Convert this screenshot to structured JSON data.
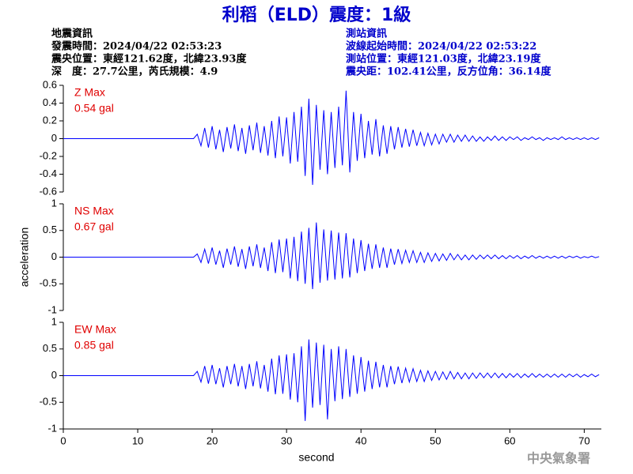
{
  "header": {
    "title": "利稻（ELD）震度：1級",
    "left": [
      "地震資訊",
      "發震時間：2024/04/22 02:53:23",
      "震央位置：東經121.62度，北緯23.93度",
      "深　度：27.7公里，芮氏規模：4.9"
    ],
    "right": [
      "測站資訊",
      "波線起始時間：2024/04/22 02:53:22",
      "測站位置：東經121.03度，北緯23.19度",
      "震央距：102.41公里，反方位角：36.14度"
    ],
    "watermark": "中央氣象署"
  },
  "chart_data": [
    {
      "type": "line",
      "color": "#0000ff",
      "annotations": [
        "Z Max",
        "0.54 gal"
      ],
      "xlim": [
        0,
        72.3
      ],
      "ylim": [
        -0.6,
        0.6
      ],
      "yticks": [
        0.6,
        0.4,
        0.2,
        0,
        -0.2,
        -0.4,
        -0.6
      ],
      "x": [
        0,
        17.5,
        18,
        18.5,
        19,
        19.5,
        20,
        20.5,
        21,
        21.5,
        22,
        22.5,
        23,
        23.5,
        24,
        24.5,
        25,
        25.5,
        26,
        26.5,
        27,
        27.5,
        28,
        28.5,
        29,
        29.5,
        30,
        30.5,
        31,
        31.5,
        32,
        32.5,
        33,
        33.5,
        34,
        34.5,
        35,
        35.5,
        36,
        36.5,
        37,
        37.5,
        38,
        38.5,
        39,
        39.5,
        40,
        40.5,
        41,
        41.5,
        42,
        42.5,
        43,
        43.5,
        44,
        44.5,
        45,
        45.5,
        46,
        46.5,
        47,
        47.5,
        48,
        48.5,
        49,
        49.5,
        50,
        50.5,
        51,
        51.5,
        52,
        52.5,
        53,
        53.5,
        54,
        54.5,
        55,
        55.5,
        56,
        56.5,
        57,
        57.5,
        58,
        58.5,
        59,
        59.5,
        60,
        60.5,
        61,
        61.5,
        62,
        62.5,
        63,
        63.5,
        64,
        64.5,
        65,
        65.5,
        66,
        66.5,
        67,
        67.5,
        68,
        68.5,
        69,
        69.5,
        70,
        70.5,
        71,
        71.5,
        72
      ],
      "values": [
        0,
        0,
        0.05,
        -0.08,
        0.12,
        -0.1,
        0.14,
        -0.12,
        0.1,
        -0.15,
        0.13,
        -0.11,
        0.16,
        -0.14,
        0.12,
        -0.17,
        0.15,
        -0.13,
        0.18,
        -0.16,
        0.14,
        -0.19,
        0.2,
        -0.22,
        0.25,
        -0.2,
        0.24,
        -0.28,
        0.3,
        -0.26,
        0.36,
        -0.42,
        0.45,
        -0.52,
        0.38,
        -0.35,
        0.32,
        -0.4,
        0.3,
        -0.33,
        0.36,
        -0.3,
        0.54,
        -0.38,
        0.3,
        -0.25,
        0.28,
        -0.22,
        0.2,
        -0.18,
        0.22,
        -0.2,
        0.15,
        -0.17,
        0.14,
        -0.12,
        0.13,
        -0.1,
        0.11,
        -0.09,
        0.1,
        -0.08,
        0.07,
        -0.08,
        0.06,
        -0.07,
        0.05,
        -0.06,
        0.05,
        -0.04,
        0.05,
        -0.04,
        0.04,
        -0.03,
        0.04,
        -0.03,
        0.03,
        -0.03,
        0.02,
        -0.03,
        0.02,
        -0.02,
        0.03,
        -0.02,
        0.02,
        -0.02,
        0.02,
        -0.01,
        0.02,
        -0.02,
        0.01,
        -0.01,
        0.02,
        -0.01,
        0.01,
        -0.02,
        0.01,
        -0.01,
        0.01,
        -0.01,
        0.02,
        -0.01,
        0.01,
        -0.01,
        0.01,
        -0.01,
        0.01,
        -0.01,
        0.01,
        -0.01,
        0.01
      ]
    },
    {
      "type": "line",
      "color": "#0000ff",
      "annotations": [
        "NS Max",
        "0.67 gal"
      ],
      "ylabel": "acceleration",
      "xlim": [
        0,
        72.3
      ],
      "ylim": [
        -1,
        1
      ],
      "yticks": [
        1,
        0.5,
        0,
        -0.5,
        -1
      ],
      "x": [
        0,
        17.5,
        18,
        18.5,
        19,
        19.5,
        20,
        20.5,
        21,
        21.5,
        22,
        22.5,
        23,
        23.5,
        24,
        24.5,
        25,
        25.5,
        26,
        26.5,
        27,
        27.5,
        28,
        28.5,
        29,
        29.5,
        30,
        30.5,
        31,
        31.5,
        32,
        32.5,
        33,
        33.5,
        34,
        34.5,
        35,
        35.5,
        36,
        36.5,
        37,
        37.5,
        38,
        38.5,
        39,
        39.5,
        40,
        40.5,
        41,
        41.5,
        42,
        42.5,
        43,
        43.5,
        44,
        44.5,
        45,
        45.5,
        46,
        46.5,
        47,
        47.5,
        48,
        48.5,
        49,
        49.5,
        50,
        50.5,
        51,
        51.5,
        52,
        52.5,
        53,
        53.5,
        54,
        54.5,
        55,
        55.5,
        56,
        56.5,
        57,
        57.5,
        58,
        58.5,
        59,
        59.5,
        60,
        60.5,
        61,
        61.5,
        62,
        62.5,
        63,
        63.5,
        64,
        64.5,
        65,
        65.5,
        66,
        66.5,
        67,
        67.5,
        68,
        68.5,
        69,
        69.5,
        70,
        70.5,
        71,
        71.5,
        72
      ],
      "values": [
        0,
        0,
        0.06,
        -0.1,
        0.15,
        -0.12,
        0.18,
        -0.14,
        0.12,
        -0.2,
        0.16,
        -0.14,
        0.2,
        -0.18,
        0.15,
        -0.22,
        0.2,
        -0.17,
        0.24,
        -0.2,
        0.18,
        -0.26,
        0.28,
        -0.3,
        0.33,
        -0.28,
        0.35,
        -0.4,
        0.38,
        -0.45,
        0.48,
        -0.5,
        0.55,
        -0.6,
        0.65,
        -0.48,
        0.52,
        -0.44,
        0.5,
        -0.42,
        0.46,
        -0.4,
        0.45,
        -0.38,
        0.35,
        -0.3,
        0.32,
        -0.26,
        0.25,
        -0.22,
        0.24,
        -0.2,
        0.18,
        -0.2,
        0.16,
        -0.14,
        0.15,
        -0.12,
        0.13,
        -0.1,
        0.12,
        -0.1,
        0.09,
        -0.1,
        0.08,
        -0.08,
        0.07,
        -0.07,
        0.06,
        -0.06,
        0.07,
        -0.05,
        0.05,
        -0.05,
        0.04,
        -0.05,
        0.04,
        -0.04,
        0.04,
        -0.03,
        0.04,
        -0.03,
        0.04,
        -0.03,
        0.03,
        -0.03,
        0.03,
        -0.02,
        0.03,
        -0.03,
        0.02,
        -0.02,
        0.03,
        -0.02,
        0.02,
        -0.02,
        0.02,
        -0.02,
        0.02,
        -0.02,
        0.02,
        -0.02,
        0.02,
        -0.01,
        0.02,
        -0.02,
        0.01,
        -0.01,
        0.02,
        -0.01,
        0.01
      ]
    },
    {
      "type": "line",
      "color": "#0000ff",
      "annotations": [
        "EW Max",
        "0.85 gal"
      ],
      "xlabel": "second",
      "xlim": [
        0,
        72.3
      ],
      "xticks": [
        0,
        10,
        20,
        30,
        40,
        50,
        60,
        70
      ],
      "ylim": [
        -1,
        1
      ],
      "yticks": [
        1,
        0.5,
        0,
        -0.5,
        -1
      ],
      "x": [
        0,
        17.5,
        18,
        18.5,
        19,
        19.5,
        20,
        20.5,
        21,
        21.5,
        22,
        22.5,
        23,
        23.5,
        24,
        24.5,
        25,
        25.5,
        26,
        26.5,
        27,
        27.5,
        28,
        28.5,
        29,
        29.5,
        30,
        30.5,
        31,
        31.5,
        32,
        32.5,
        33,
        33.5,
        34,
        34.5,
        35,
        35.5,
        36,
        36.5,
        37,
        37.5,
        38,
        38.5,
        39,
        39.5,
        40,
        40.5,
        41,
        41.5,
        42,
        42.5,
        43,
        43.5,
        44,
        44.5,
        45,
        45.5,
        46,
        46.5,
        47,
        47.5,
        48,
        48.5,
        49,
        49.5,
        50,
        50.5,
        51,
        51.5,
        52,
        52.5,
        53,
        53.5,
        54,
        54.5,
        55,
        55.5,
        56,
        56.5,
        57,
        57.5,
        58,
        58.5,
        59,
        59.5,
        60,
        60.5,
        61,
        61.5,
        62,
        62.5,
        63,
        63.5,
        64,
        64.5,
        65,
        65.5,
        66,
        66.5,
        67,
        67.5,
        68,
        68.5,
        69,
        69.5,
        70,
        70.5,
        71,
        71.5,
        72
      ],
      "values": [
        0,
        0,
        0.08,
        -0.12,
        0.18,
        -0.15,
        0.2,
        -0.16,
        0.14,
        -0.22,
        0.18,
        -0.16,
        0.22,
        -0.2,
        0.18,
        -0.25,
        0.22,
        -0.2,
        0.27,
        -0.24,
        0.2,
        -0.3,
        0.32,
        -0.35,
        0.38,
        -0.34,
        0.4,
        -0.45,
        0.42,
        -0.5,
        0.55,
        -0.85,
        0.68,
        -0.6,
        0.62,
        -0.55,
        0.58,
        -0.82,
        0.5,
        -0.48,
        0.55,
        -0.44,
        0.5,
        -0.4,
        0.38,
        -0.34,
        0.35,
        -0.3,
        0.28,
        -0.25,
        0.26,
        -0.22,
        0.2,
        -0.22,
        0.18,
        -0.16,
        0.17,
        -0.14,
        0.14,
        -0.12,
        0.13,
        -0.11,
        0.1,
        -0.11,
        0.09,
        -0.09,
        0.08,
        -0.08,
        0.07,
        -0.07,
        0.08,
        -0.06,
        0.06,
        -0.06,
        0.05,
        -0.06,
        0.05,
        -0.05,
        0.05,
        -0.04,
        0.05,
        -0.04,
        0.05,
        -0.04,
        0.04,
        -0.04,
        0.04,
        -0.03,
        0.04,
        -0.04,
        0.03,
        -0.03,
        0.04,
        -0.03,
        0.03,
        -0.03,
        0.03,
        -0.03,
        0.03,
        -0.03,
        0.03,
        -0.03,
        0.03,
        -0.02,
        0.03,
        -0.03,
        0.02,
        -0.02,
        0.03,
        -0.02,
        0.02
      ]
    }
  ]
}
